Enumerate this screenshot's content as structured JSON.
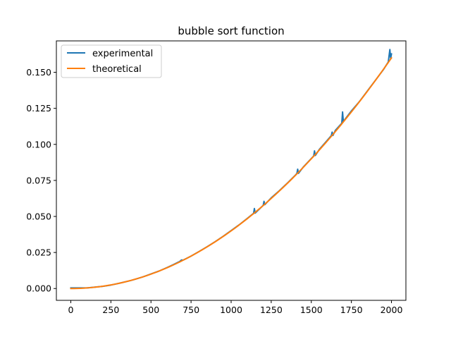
{
  "chart_data": {
    "type": "line",
    "title": "bubble sort function",
    "xlabel": "",
    "ylabel": "",
    "xlim": [
      -90,
      2090
    ],
    "ylim": [
      -0.0082,
      0.1718
    ],
    "x_ticks": [
      0,
      250,
      500,
      750,
      1000,
      1250,
      1500,
      1750,
      2000
    ],
    "x_tick_labels": [
      "0",
      "250",
      "500",
      "750",
      "1000",
      "1250",
      "1500",
      "1750",
      "2000"
    ],
    "y_ticks": [
      0.0,
      0.025,
      0.05,
      0.075,
      0.1,
      0.125,
      0.15
    ],
    "y_tick_labels": [
      "0.000",
      "0.025",
      "0.050",
      "0.075",
      "0.100",
      "0.125",
      "0.150"
    ],
    "grid": false,
    "legend_position": "upper-left",
    "series": [
      {
        "name": "experimental",
        "color": "#1f77b4",
        "x": [
          0,
          100,
          200,
          250,
          300,
          375,
          400,
          450,
          470,
          500,
          550,
          600,
          640,
          680,
          690,
          700,
          750,
          800,
          850,
          900,
          950,
          1000,
          1050,
          1100,
          1140,
          1145,
          1150,
          1200,
          1205,
          1210,
          1250,
          1300,
          1350,
          1400,
          1410,
          1415,
          1420,
          1450,
          1500,
          1515,
          1520,
          1525,
          1550,
          1600,
          1625,
          1630,
          1635,
          1650,
          1690,
          1695,
          1700,
          1750,
          1800,
          1850,
          1900,
          1950,
          1980,
          1990,
          1995,
          2000
        ],
        "y": [
          0.0004,
          0.0004,
          0.0015,
          0.0024,
          0.0036,
          0.0056,
          0.0064,
          0.0081,
          0.0089,
          0.0101,
          0.0121,
          0.0145,
          0.0166,
          0.0188,
          0.0198,
          0.0197,
          0.0225,
          0.0257,
          0.029,
          0.0325,
          0.0362,
          0.0402,
          0.0442,
          0.0486,
          0.0522,
          0.0555,
          0.0523,
          0.0577,
          0.0605,
          0.0582,
          0.0629,
          0.0678,
          0.0731,
          0.0786,
          0.0798,
          0.0828,
          0.0799,
          0.0843,
          0.0902,
          0.092,
          0.0955,
          0.0923,
          0.0965,
          0.1029,
          0.1061,
          0.1085,
          0.1062,
          0.1097,
          0.1147,
          0.1225,
          0.1159,
          0.1232,
          0.1297,
          0.1371,
          0.1445,
          0.1519,
          0.1572,
          0.1658,
          0.1595,
          0.1628
        ]
      },
      {
        "name": "theoretical",
        "color": "#ff7f0e",
        "formula_coefficient": 4e-08,
        "x": [
          0,
          250,
          500,
          750,
          1000,
          1250,
          1500,
          1750,
          2000
        ],
        "y": [
          0.0,
          0.0025,
          0.01,
          0.0225,
          0.04,
          0.0625,
          0.09,
          0.1225,
          0.16
        ]
      }
    ]
  }
}
